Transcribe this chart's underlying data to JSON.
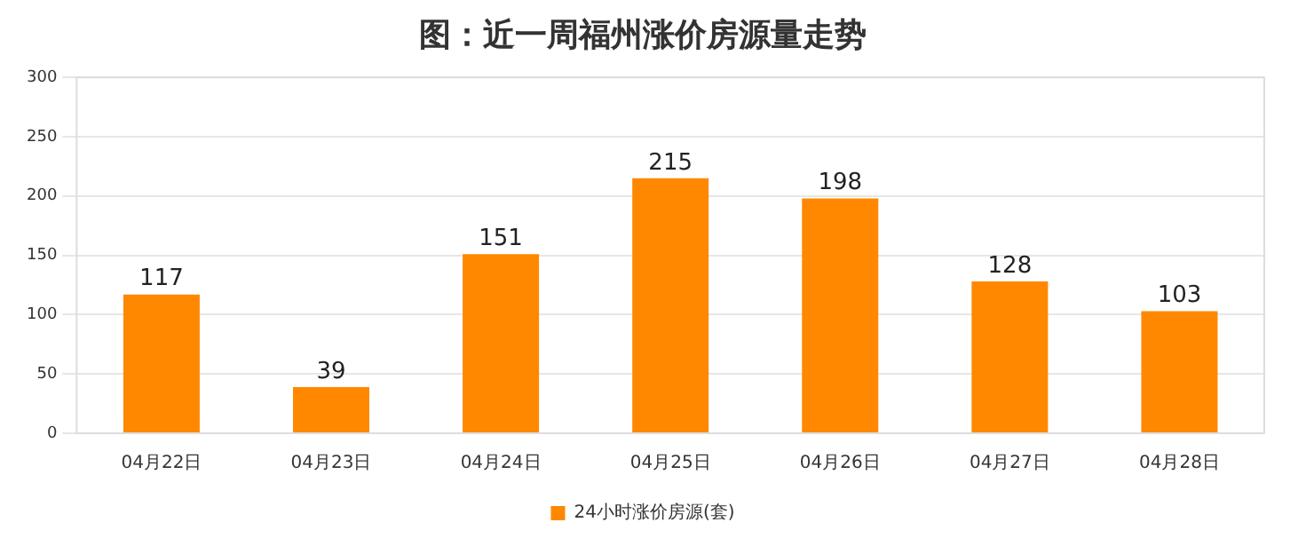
{
  "chart_data": {
    "type": "bar",
    "title": "图：近一周福州涨价房源量走势",
    "categories": [
      "04月22日",
      "04月23日",
      "04月24日",
      "04月25日",
      "04月26日",
      "04月27日",
      "04月28日"
    ],
    "series": [
      {
        "name": "24小时涨价房源(套)",
        "color": "#ff8800",
        "values": [
          117,
          39,
          151,
          215,
          198,
          128,
          103
        ]
      }
    ],
    "ylim": [
      0,
      300
    ],
    "yticks": [
      0,
      50,
      100,
      150,
      200,
      250,
      300
    ],
    "grid": "y",
    "legend": "bottom",
    "data_labels": true
  }
}
